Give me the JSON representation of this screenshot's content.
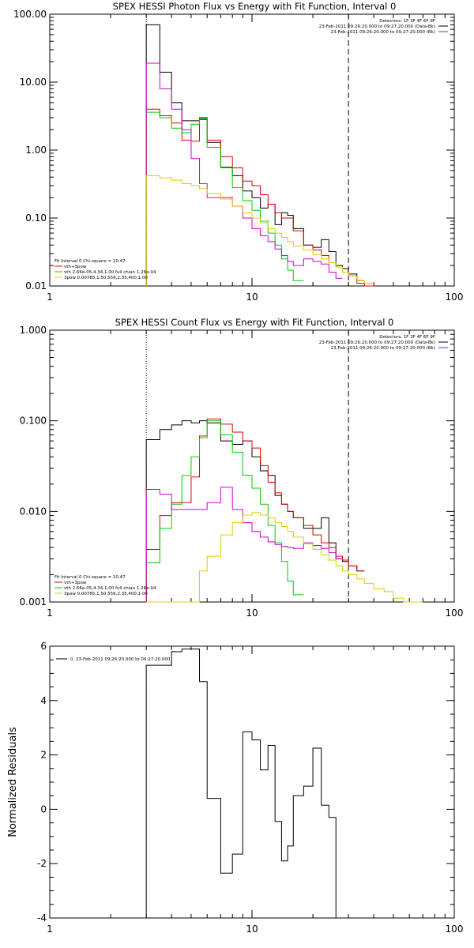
{
  "chart_data": [
    {
      "type": "line",
      "title": "SPEX HESSI Photon Flux vs Energy with Fit Function, Interval 0",
      "xlabel": "",
      "ylabel": "",
      "xscale": "log",
      "yscale": "log",
      "xlim": [
        1,
        100
      ],
      "ylim": [
        0.01,
        100
      ],
      "x_ticks": [
        "1",
        "10",
        "100"
      ],
      "y_ticks": [
        "0.01",
        "0.10",
        "1.00",
        "10.00",
        "100.00"
      ],
      "grid": false,
      "legend_position": "top-right",
      "legend": [
        {
          "text": "Detectors: 1F 3F 4F 6F 9F",
          "color": ""
        },
        {
          "text": "23-Feb-2011 09:26:20.000 to 09:27:20.000 (Data-Bk)",
          "color": "#000000"
        },
        {
          "text": "23-Feb-2011 09:26:20.000 to 09:27:20.000 (Bk)",
          "color": "#cc00cc"
        }
      ],
      "fit_legend": [
        {
          "text": "Fit Interval 0   Chi-square = 10.47",
          "color": ""
        },
        {
          "text": "vth+3pow",
          "color": "#dd0000"
        },
        {
          "text": "vth 2.66e-05,4.34,1.00  full chian 1.26e-04",
          "color": "#00cc00"
        },
        {
          "text": "3pow 0.00785,1.50,556,2.35,400,1.00",
          "color": "#ddcc00"
        }
      ],
      "vlines": [
        {
          "x": 3,
          "style": "dotted"
        },
        {
          "x": 30,
          "style": "dashed"
        }
      ],
      "edges": [
        3,
        3.5,
        4,
        4.5,
        5,
        5.5,
        6,
        7,
        8,
        9,
        10,
        11,
        12,
        13,
        14,
        15,
        16,
        18,
        20,
        22,
        24,
        26,
        28,
        30,
        33,
        36,
        40
      ],
      "series": [
        {
          "name": "",
          "color": "#000000",
          "values": [
            70,
            14,
            5,
            2.7,
            2.7,
            3.0,
            1.3,
            0.56,
            0.42,
            0.25,
            0.2,
            0.14,
            0.16,
            0.08,
            0.12,
            0.11,
            0.07,
            0.04,
            0.037,
            0.048,
            0.032,
            0.02,
            0.018,
            0.015,
            0.012
          ]
        },
        {
          "name": "",
          "color": "#dd0000",
          "values": [
            4.0,
            3.2,
            2.5,
            1.4,
            1.35,
            2.8,
            1.4,
            0.8,
            0.55,
            0.35,
            0.3,
            0.22,
            0.16,
            0.12,
            0.1,
            0.1,
            0.065,
            0.04,
            0.034,
            0.028,
            0.022,
            0.019,
            0.016,
            0.014,
            0.011,
            0.01
          ]
        },
        {
          "name": "",
          "color": "#00cc00",
          "values": [
            3.6,
            3.0,
            2.1,
            1.8,
            2.4,
            2.9,
            1.1,
            0.55,
            0.28,
            0.18,
            0.13,
            0.09,
            0.06,
            0.04,
            0.025,
            0.017,
            0.012
          ]
        },
        {
          "name": "",
          "color": "#cc00cc",
          "values": [
            19.0,
            8.0,
            4.0,
            2.0,
            0.75,
            0.32,
            0.2,
            0.2,
            0.15,
            0.1,
            0.07,
            0.055,
            0.045,
            0.035,
            0.028,
            0.023,
            0.02,
            0.025,
            0.023,
            0.021,
            0.016,
            0.013
          ]
        },
        {
          "name": "",
          "color": "#ddcc00",
          "values": [
            0.42,
            0.39,
            0.36,
            0.32,
            0.3,
            0.27,
            0.23,
            0.19,
            0.15,
            0.12,
            0.1,
            0.085,
            0.07,
            0.06,
            0.052,
            0.045,
            0.039,
            0.034,
            0.029,
            0.025,
            0.022,
            0.019,
            0.016,
            0.014,
            0.012,
            0.011
          ]
        }
      ]
    },
    {
      "type": "line",
      "title": "SPEX HESSI Count Flux vs Energy with Fit Function, Interval 0",
      "xlabel": "",
      "ylabel": "",
      "xscale": "log",
      "yscale": "log",
      "xlim": [
        1,
        100
      ],
      "ylim": [
        0.001,
        1
      ],
      "x_ticks": [
        "1",
        "10",
        "100"
      ],
      "y_ticks": [
        "0.001",
        "0.010",
        "0.100",
        "1.000"
      ],
      "grid": false,
      "legend_position": "top-right",
      "legend": [
        {
          "text": "Detectors: 1F 3F 4F 6F 9F",
          "color": ""
        },
        {
          "text": "23-Feb-2011 09:26:20.000 to 09:27:20.000 (Data-Bk)",
          "color": "#000000"
        },
        {
          "text": "23-Feb-2011 09:26:20.000 to 09:27:20.000 (Bk)",
          "color": "#cc00cc"
        }
      ],
      "fit_legend": [
        {
          "text": "Fit Interval 0   Chi-square = 10.47",
          "color": ""
        },
        {
          "text": "vth+3pow",
          "color": "#dd0000"
        },
        {
          "text": "vth 2.66e-05,4.34,1.00  full chian 1.26e-04",
          "color": "#00cc00"
        },
        {
          "text": "3pow 0.00785,1.50,556,2.35,400,1.00",
          "color": "#ddcc00"
        }
      ],
      "vlines": [
        {
          "x": 3,
          "style": "dotted"
        },
        {
          "x": 30,
          "style": "dashed"
        }
      ],
      "edges": [
        3,
        3.5,
        4,
        4.5,
        5,
        5.5,
        6,
        7,
        8,
        9,
        10,
        11,
        12,
        13,
        14,
        15,
        16,
        18,
        20,
        22,
        24,
        26,
        28,
        30,
        33,
        36,
        40,
        45,
        50,
        56,
        62,
        70
      ],
      "series": [
        {
          "name": "",
          "color": "#000000",
          "values": [
            0.062,
            0.08,
            0.09,
            0.1,
            0.095,
            0.1,
            0.095,
            0.06,
            0.055,
            0.06,
            0.04,
            0.028,
            0.025,
            0.015,
            0.012,
            0.01,
            0.0085,
            0.0065,
            0.0065,
            0.0085,
            0.0045,
            0.003,
            0.0028,
            0.0025,
            0.0022
          ]
        },
        {
          "name": "",
          "color": "#dd0000",
          "values": [
            0.0038,
            0.009,
            0.0125,
            0.0125,
            0.024,
            0.068,
            0.105,
            0.092,
            0.075,
            0.06,
            0.05,
            0.032,
            0.021,
            0.016,
            0.012,
            0.01,
            0.0085,
            0.007,
            0.0055,
            0.0045,
            0.004,
            0.0032,
            0.0029,
            0.0025,
            0.0022
          ]
        },
        {
          "name": "",
          "color": "#00cc00",
          "values": [
            0.0027,
            0.0065,
            0.012,
            0.025,
            0.04,
            0.065,
            0.1,
            0.07,
            0.045,
            0.025,
            0.018,
            0.012,
            0.007,
            0.0045,
            0.0028,
            0.0017,
            0.0012
          ]
        },
        {
          "name": "",
          "color": "#cc00cc",
          "values": [
            0.0175,
            0.0155,
            0.0105,
            0.0105,
            0.0105,
            0.0105,
            0.0125,
            0.0185,
            0.0105,
            0.0075,
            0.006,
            0.0052,
            0.0046,
            0.0043,
            0.0041,
            0.004,
            0.0039,
            0.0045,
            0.0042,
            0.0039,
            0.0035,
            0.003
          ]
        },
        {
          "name": "",
          "color": "#ddcc00",
          "values": [
            0.00085,
            0.00085,
            0.00085,
            0.00085,
            0.00085,
            0.0022,
            0.0032,
            0.0055,
            0.0075,
            0.0091,
            0.0097,
            0.0091,
            0.0085,
            0.0075,
            0.0068,
            0.006,
            0.0052,
            0.0044,
            0.0038,
            0.0033,
            0.0029,
            0.0025,
            0.0022,
            0.002,
            0.0018,
            0.0016,
            0.0014,
            0.0013,
            0.0011,
            0.001,
            0.0009
          ]
        }
      ]
    },
    {
      "type": "line",
      "title": "",
      "xlabel": "",
      "ylabel": "Normalized Residuals",
      "xscale": "log",
      "yscale": "linear",
      "xlim": [
        1,
        100
      ],
      "ylim": [
        -4,
        6
      ],
      "x_ticks": [
        "1",
        "10",
        "100"
      ],
      "y_ticks": [
        "-4",
        "-2",
        "0",
        "2",
        "4",
        "6"
      ],
      "grid": false,
      "legend_position": "top-left",
      "legend": [
        {
          "text": "0. 23-Feb-2011 09:26:20.000 to 09:27:20.000",
          "color": "#000000"
        }
      ],
      "edges": [
        3,
        3.5,
        4,
        4.5,
        5,
        5.5,
        6,
        7,
        8,
        9,
        10,
        11,
        12,
        13,
        14,
        15,
        16,
        18,
        20,
        22,
        24,
        26,
        28,
        30
      ],
      "series": [
        {
          "name": "",
          "color": "#000000",
          "values": [
            5.3,
            5.3,
            5.8,
            5.9,
            5.9,
            4.7,
            0.4,
            -2.35,
            -1.65,
            2.85,
            2.55,
            1.45,
            2.35,
            -0.45,
            -1.9,
            -1.35,
            0.5,
            0.85,
            2.25,
            0.15,
            -0.3
          ]
        }
      ]
    }
  ]
}
